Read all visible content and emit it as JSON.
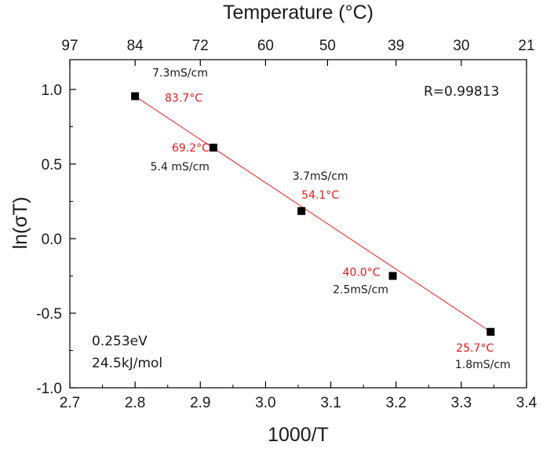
{
  "chart_data": {
    "type": "scatter",
    "xlabel": "1000/T",
    "ylabel": "ln(σT)",
    "top_xlabel": "Temperature (°C)",
    "xlim": [
      2.7,
      3.4
    ],
    "ylim": [
      -1.0,
      1.2
    ],
    "xticks": [
      "2.7",
      "2.8",
      "2.9",
      "3.0",
      "3.1",
      "3.2",
      "3.3",
      "3.4"
    ],
    "yticks": [
      "-1.0",
      "-0.5",
      "0.0",
      "0.5",
      "1.0"
    ],
    "top_ticks": [
      {
        "label": "97",
        "x": 2.7
      },
      {
        "label": "84",
        "x": 2.8
      },
      {
        "label": "72",
        "x": 2.9
      },
      {
        "label": "60",
        "x": 3.0
      },
      {
        "label": "50",
        "x": 3.095
      },
      {
        "label": "39",
        "x": 3.2
      },
      {
        "label": "30",
        "x": 3.3
      },
      {
        "label": "21",
        "x": 3.4
      }
    ],
    "series": [
      {
        "x": [
          2.8,
          2.92,
          3.055,
          3.195,
          3.345
        ],
        "y": [
          0.955,
          0.61,
          0.185,
          -0.25,
          -0.625
        ],
        "color": "#000000"
      }
    ],
    "fit_line": {
      "x": [
        2.8,
        3.345
      ],
      "y": [
        0.955,
        -0.625
      ],
      "color": "#e41a1c"
    },
    "point_labels": [
      {
        "cond": "7.3mS/cm",
        "temp": "83.7°C"
      },
      {
        "cond": "5.4 mS/cm",
        "temp": "69.2°C"
      },
      {
        "cond": "3.7mS/cm",
        "temp": "54.1°C"
      },
      {
        "cond": "2.5mS/cm",
        "temp": "40.0°C"
      },
      {
        "cond": "1.8mS/cm",
        "temp": "25.7°C"
      }
    ],
    "annotations": {
      "r_value": "R=0.99813",
      "energy_ev": "0.253eV",
      "energy_kj": "24.5kJ/mol"
    },
    "colors": {
      "temp_label": "#e41a1c",
      "cond_label": "#1a1a1a"
    }
  }
}
